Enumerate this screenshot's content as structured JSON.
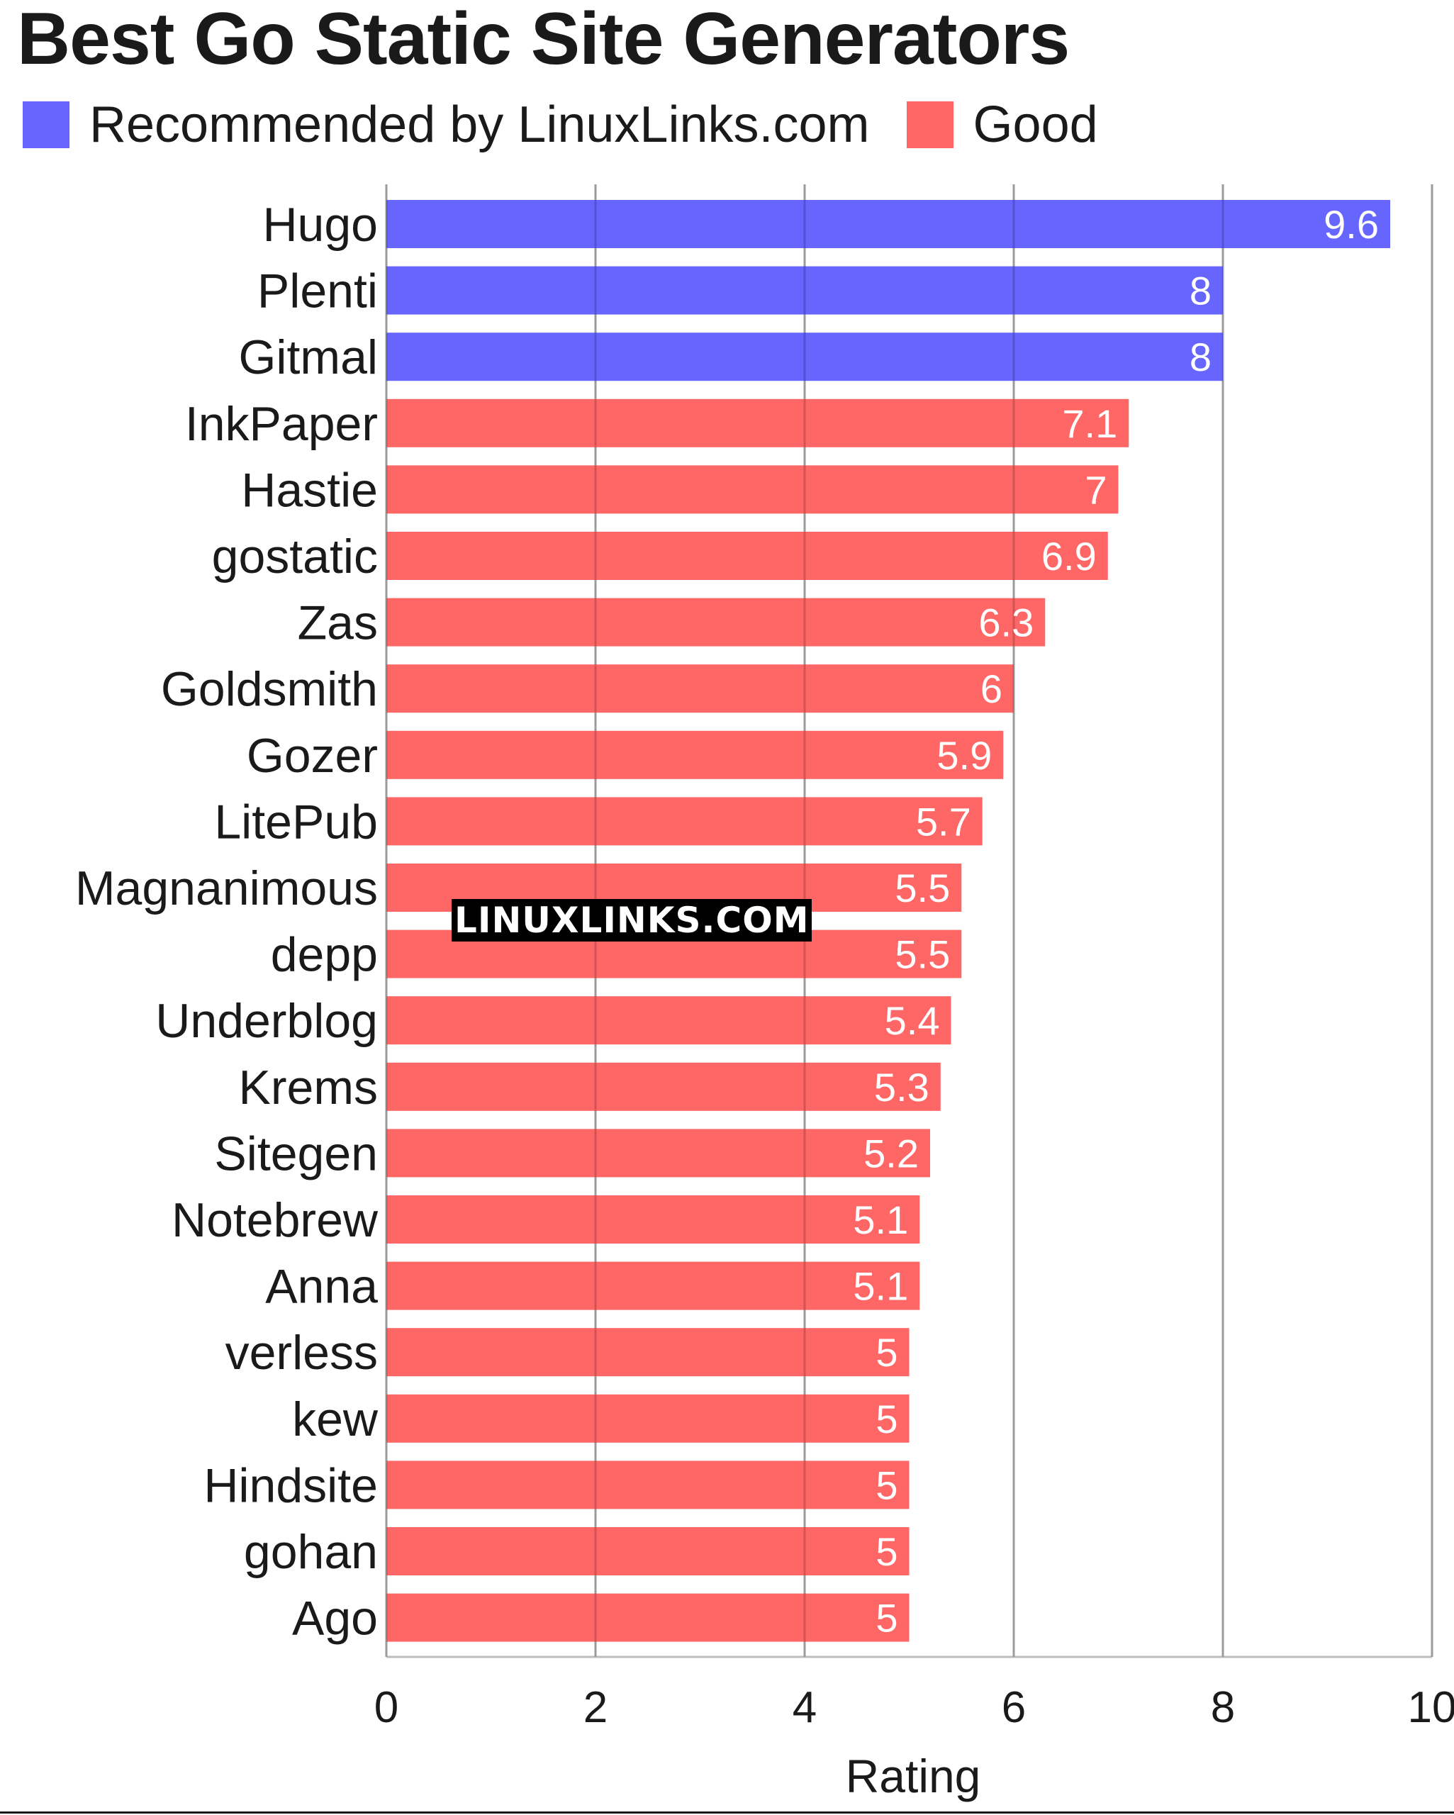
{
  "chart_data": {
    "type": "bar",
    "orientation": "horizontal",
    "title": "Best Go Static Site Generators",
    "xlabel": "Rating",
    "ylabel": "",
    "xlim": [
      0,
      10
    ],
    "xticks": [
      "0",
      "2",
      "4",
      "6",
      "8",
      "10"
    ],
    "grid": "vertical",
    "legend_position": "top-left",
    "legend": [
      {
        "label": "Recommended by LinuxLinks.com",
        "color": "#6666ff"
      },
      {
        "label": "Good",
        "color": "#ff6666"
      }
    ],
    "categories": [
      "Hugo",
      "Plenti",
      "Gitmal",
      "InkPaper",
      "Hastie",
      "gostatic",
      "Zas",
      "Goldsmith",
      "Gozer",
      "LitePub",
      "Magnanimous",
      "depp",
      "Underblog",
      "Krems",
      "Sitegen",
      "Notebrew",
      "Anna",
      "verless",
      "kew",
      "Hindsite",
      "gohan",
      "Ago"
    ],
    "values": [
      9.6,
      8,
      8,
      7.1,
      7,
      6.9,
      6.3,
      6,
      5.9,
      5.7,
      5.5,
      5.5,
      5.4,
      5.3,
      5.2,
      5.1,
      5.1,
      5,
      5,
      5,
      5,
      5
    ],
    "groups": [
      "Recommended by LinuxLinks.com",
      "Recommended by LinuxLinks.com",
      "Recommended by LinuxLinks.com",
      "Good",
      "Good",
      "Good",
      "Good",
      "Good",
      "Good",
      "Good",
      "Good",
      "Good",
      "Good",
      "Good",
      "Good",
      "Good",
      "Good",
      "Good",
      "Good",
      "Good",
      "Good",
      "Good"
    ],
    "data_labels": [
      "9.6",
      "8",
      "8",
      "7.1",
      "7",
      "6.9",
      "6.3",
      "6",
      "5.9",
      "5.7",
      "5.5",
      "5.5",
      "5.4",
      "5.3",
      "5.2",
      "5.1",
      "5.1",
      "5",
      "5",
      "5",
      "5",
      "5"
    ]
  },
  "watermark": "LINUXLINKS.COM"
}
